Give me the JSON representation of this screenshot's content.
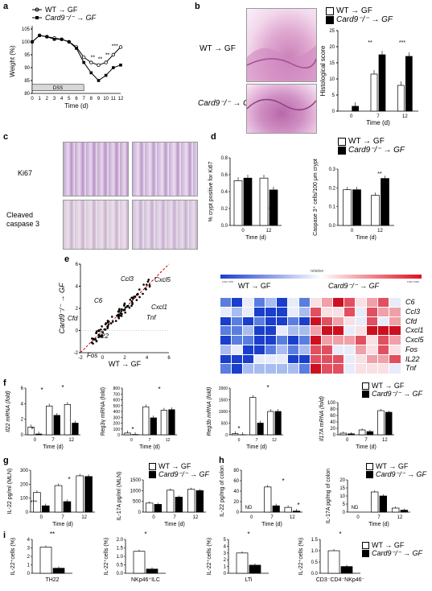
{
  "panels": {
    "a": "a",
    "b": "b",
    "c": "c",
    "d": "d",
    "e": "e",
    "f": "f",
    "g": "g",
    "h": "h",
    "i": "i"
  },
  "legend": {
    "wt": "WT → GF",
    "card9": "Card9⁻/⁻ → GF"
  },
  "colors": {
    "wt_fill": "#ffffff",
    "card9_fill": "#000000",
    "dashed": "#d00000",
    "he_pink": "#d890c0",
    "ki67": "#b0a0c8"
  },
  "panel_a": {
    "ylabel": "Weight (%)",
    "xlabel": "Time (d)",
    "dss": "DSS",
    "yticks": [
      "80",
      "85",
      "90",
      "95",
      "100",
      "105"
    ],
    "xticks": [
      "0",
      "1",
      "2",
      "3",
      "4",
      "5",
      "6",
      "7",
      "8",
      "9",
      "10",
      "11",
      "12"
    ],
    "stars": [
      "**",
      "**",
      "**",
      "***"
    ]
  },
  "panel_b": {
    "row1": "WT → GF",
    "row2": "Card9⁻/⁻ → GF",
    "ylabel": "Histological score",
    "xlabel": "Time (d)",
    "stars": [
      "**",
      "***"
    ]
  },
  "panel_c": {
    "row1": "Ki67",
    "row2": "Cleaved caspase 3"
  },
  "panel_d": {
    "chart1_ylabel": "% crypt positive for Ki67",
    "chart2_ylabel": "Caspase 3⁺ cells/100 μm crypt",
    "xlabel": "Time (d)",
    "star1": "***",
    "star2": "**"
  },
  "panel_e": {
    "ylabel": "Card9⁻/⁻ → GF",
    "xlabel": "WT → GF",
    "labels": [
      "Ccl3",
      "Cxcl5",
      "C6",
      "Cxcl1",
      "Tnf",
      "Cfd",
      "Il22",
      "Fos"
    ],
    "heat_header": "relative",
    "heat_low": "row min",
    "heat_high": "row max",
    "heat_wt": "WT → GF",
    "heat_card9": "Card9⁻/⁻ → GF",
    "genes": [
      "C6",
      "Ccl3",
      "Cfd",
      "Cxcl1",
      "Cxcl5",
      "Fos",
      "IL22",
      "Tnf"
    ]
  },
  "panel_f": {
    "ylabels": [
      "Il22 mRNA (fold)",
      "Reg3γ mRNA (fold)",
      "Reg3b mRNA (fold)",
      "Il17A mRNA (fold)"
    ],
    "xlabel": "Time (d)"
  },
  "panel_g": {
    "ylabels": [
      "IL-22 pg/ml (MLN)",
      "IL-17A pg/ml (MLN)"
    ],
    "xlabel": "Time (d)"
  },
  "panel_h": {
    "ylabels": [
      "IL-22 pg/mg of colon",
      "IL-17A pg/mg of colon"
    ],
    "xlabel": "Time (d)",
    "nd": "ND"
  },
  "panel_i": {
    "ylabel": "IL-22⁺cells (%)",
    "cats": [
      "TH22",
      "NKp46⁺ILC",
      "LTi",
      "CD3⁻CD4⁻NKp46⁻"
    ]
  },
  "chart_data": [
    {
      "id": "a",
      "type": "line",
      "title": "",
      "xlabel": "Time (d)",
      "ylabel": "Weight (%)",
      "ylim": [
        80,
        105
      ],
      "x": [
        0,
        1,
        2,
        3,
        4,
        5,
        6,
        7,
        8,
        9,
        10,
        11,
        12
      ],
      "series": [
        {
          "name": "WT → GF",
          "values": [
            100,
            102.5,
            102,
            101.5,
            101,
            100,
            98,
            94,
            92,
            91,
            92,
            95,
            98
          ]
        },
        {
          "name": "Card9⁻/⁻ → GF",
          "values": [
            100,
            102.5,
            102,
            101,
            101,
            100,
            97.5,
            92,
            88,
            85,
            87,
            90,
            91
          ]
        }
      ]
    },
    {
      "id": "b",
      "type": "bar",
      "xlabel": "Time (d)",
      "ylabel": "Histological score",
      "ylim": [
        0,
        25
      ],
      "categories": [
        "0",
        "7",
        "12"
      ],
      "series": [
        {
          "name": "WT → GF",
          "values": [
            0,
            11.5,
            8
          ]
        },
        {
          "name": "Card9⁻/⁻ → GF",
          "values": [
            1.5,
            17.5,
            17
          ]
        }
      ]
    },
    {
      "id": "d1",
      "type": "bar",
      "xlabel": "Time (d)",
      "ylabel": "% crypt positive for Ki67",
      "ylim": [
        0,
        0.8
      ],
      "yticks": [
        "0.0",
        "0.2",
        "0.4",
        "0.6",
        "0.8"
      ],
      "categories": [
        "0",
        "12"
      ],
      "series": [
        {
          "name": "WT → GF",
          "values": [
            0.53,
            0.56
          ]
        },
        {
          "name": "Card9⁻/⁻ → GF",
          "values": [
            0.56,
            0.42
          ]
        }
      ]
    },
    {
      "id": "d2",
      "type": "bar",
      "xlabel": "Time (d)",
      "ylabel": "Caspase 3⁺ cells/100 μm crypt",
      "ylim": [
        0,
        0.3
      ],
      "yticks": [
        "0.0",
        "0.1",
        "0.2",
        "0.3"
      ],
      "categories": [
        "0",
        "12"
      ],
      "series": [
        {
          "name": "WT → GF",
          "values": [
            0.19,
            0.16
          ]
        },
        {
          "name": "Card9⁻/⁻ → GF",
          "values": [
            0.19,
            0.25
          ]
        }
      ]
    },
    {
      "id": "e",
      "type": "scatter",
      "xlabel": "WT → GF",
      "ylabel": "Card9⁻/⁻ → GF",
      "xlim": [
        -2,
        6
      ],
      "ylim": [
        -2,
        6
      ],
      "xticks": [
        "-2",
        "0",
        "2",
        "4",
        "6"
      ],
      "yticks": [
        "-2",
        "0",
        "2",
        "4",
        "6"
      ]
    },
    {
      "id": "f1",
      "type": "bar",
      "xlabel": "Time (d)",
      "ylabel": "Il22 mRNA (fold)",
      "ylim": [
        0,
        6
      ],
      "yticks": [
        "0",
        "2",
        "4",
        "6"
      ],
      "categories": [
        "0",
        "7",
        "12"
      ],
      "series": [
        {
          "name": "WT → GF",
          "values": [
            1,
            3.7,
            3.9
          ]
        },
        {
          "name": "Card9⁻/⁻ → GF",
          "values": [
            0.1,
            2.5,
            1.5
          ]
        }
      ]
    },
    {
      "id": "f2",
      "type": "bar",
      "xlabel": "Time (d)",
      "ylabel": "Reg3γ mRNA (fold)",
      "ylim": [
        0,
        800
      ],
      "yticks": [
        "0",
        "100",
        "200",
        "300",
        "400",
        "500",
        "600",
        "700",
        "800"
      ],
      "categories": [
        "0",
        "7",
        "12"
      ],
      "series": [
        {
          "name": "WT → GF",
          "values": [
            30,
            480,
            420
          ]
        },
        {
          "name": "Card9⁻/⁻ → GF",
          "values": [
            5,
            290,
            430
          ]
        }
      ]
    },
    {
      "id": "f3",
      "type": "bar",
      "xlabel": "Time (d)",
      "ylabel": "Reg3b mRNA (fold)",
      "ylim": [
        0,
        2000
      ],
      "yticks": [
        "0",
        "500",
        "1000",
        "1500",
        "2000"
      ],
      "categories": [
        "0",
        "7",
        "12"
      ],
      "series": [
        {
          "name": "WT → GF",
          "values": [
            50,
            1600,
            1000
          ]
        },
        {
          "name": "Card9⁻/⁻ → GF",
          "values": [
            5,
            500,
            1000
          ]
        }
      ]
    },
    {
      "id": "f4",
      "type": "bar",
      "xlabel": "Time (d)",
      "ylabel": "Il17A mRNA (fold)",
      "ylim": [
        0,
        100
      ],
      "yticks": [
        "0",
        "20",
        "40",
        "60",
        "80",
        "100"
      ],
      "categories": [
        "0",
        "7",
        "12"
      ],
      "series": [
        {
          "name": "WT → GF",
          "values": [
            5,
            15,
            75
          ]
        },
        {
          "name": "Card9⁻/⁻ → GF",
          "values": [
            3,
            10,
            70
          ]
        }
      ]
    },
    {
      "id": "g1",
      "type": "bar",
      "xlabel": "Time (d)",
      "ylabel": "IL-22 pg/ml (MLN)",
      "ylim": [
        0,
        300
      ],
      "yticks": [
        "0",
        "100",
        "200",
        "300"
      ],
      "categories": [
        "0",
        "7",
        "12"
      ],
      "series": [
        {
          "name": "WT → GF",
          "values": [
            140,
            190,
            260
          ]
        },
        {
          "name": "Card9⁻/⁻ → GF",
          "values": [
            45,
            75,
            255
          ]
        }
      ]
    },
    {
      "id": "g2",
      "type": "bar",
      "xlabel": "Time (d)",
      "ylabel": "IL-17A pg/ml (MLN)",
      "ylim": [
        0,
        1500
      ],
      "yticks": [
        "0",
        "500",
        "1000",
        "1500"
      ],
      "categories": [
        "0",
        "7",
        "12"
      ],
      "series": [
        {
          "name": "WT → GF",
          "values": [
            420,
            1020,
            1060
          ]
        },
        {
          "name": "Card9⁻/⁻ → GF",
          "values": [
            360,
            700,
            1000
          ]
        }
      ]
    },
    {
      "id": "h1",
      "type": "bar",
      "xlabel": "Time (d)",
      "ylabel": "IL-22 pg/mg of colon",
      "ylim": [
        0,
        80
      ],
      "yticks": [
        "0",
        "20",
        "40",
        "60",
        "80"
      ],
      "categories": [
        "0",
        "7",
        "12"
      ],
      "series": [
        {
          "name": "WT → GF",
          "values": [
            0,
            48,
            9
          ]
        },
        {
          "name": "Card9⁻/⁻ → GF",
          "values": [
            0,
            12,
            2
          ]
        }
      ]
    },
    {
      "id": "h2",
      "type": "bar",
      "xlabel": "Time (d)",
      "ylabel": "IL-17A pg/mg of colon",
      "ylim": [
        0,
        20
      ],
      "yticks": [
        "0",
        "5",
        "10",
        "15",
        "20"
      ],
      "categories": [
        "0",
        "7",
        "12"
      ],
      "series": [
        {
          "name": "WT → GF",
          "values": [
            0,
            12.5,
            2.5
          ]
        },
        {
          "name": "Card9⁻/⁻ → GF",
          "values": [
            0,
            10,
            1.2
          ]
        }
      ]
    },
    {
      "id": "i1",
      "type": "bar",
      "xlabel": "TH22",
      "ylabel": "IL-22⁺cells (%)",
      "ylim": [
        0,
        4
      ],
      "yticks": [
        "0",
        "1",
        "2",
        "3",
        "4"
      ],
      "categories": [
        "TH22"
      ],
      "series": [
        {
          "name": "WT → GF",
          "values": [
            3.1
          ]
        },
        {
          "name": "Card9⁻/⁻ → GF",
          "values": [
            0.6
          ]
        }
      ]
    },
    {
      "id": "i2",
      "type": "bar",
      "xlabel": "NKp46⁺ILC",
      "ylabel": "IL-22⁺cells (%)",
      "ylim": [
        0,
        2
      ],
      "yticks": [
        "0.0",
        "0.5",
        "1.0",
        "1.5",
        "2.0"
      ],
      "categories": [
        "NKp46⁺ILC"
      ],
      "series": [
        {
          "name": "WT → GF",
          "values": [
            1.3
          ]
        },
        {
          "name": "Card9⁻/⁻ → GF",
          "values": [
            0.25
          ]
        }
      ]
    },
    {
      "id": "i3",
      "type": "bar",
      "xlabel": "LTi",
      "ylabel": "IL-22⁺cells (%)",
      "ylim": [
        0,
        5
      ],
      "yticks": [
        "0",
        "1",
        "2",
        "3",
        "4",
        "5"
      ],
      "categories": [
        "LTi"
      ],
      "series": [
        {
          "name": "WT → GF",
          "values": [
            3.0
          ]
        },
        {
          "name": "Card9⁻/⁻ → GF",
          "values": [
            1.2
          ]
        }
      ]
    },
    {
      "id": "i4",
      "type": "bar",
      "xlabel": "CD3⁻CD4⁻NKp46⁻",
      "ylabel": "IL-22⁺cells (%)",
      "ylim": [
        0,
        1.5
      ],
      "yticks": [
        "0.0",
        "0.5",
        "1.0",
        "1.5"
      ],
      "categories": [
        "CD3⁻CD4⁻NKp46⁻"
      ],
      "series": [
        {
          "name": "WT → GF",
          "values": [
            1.0
          ]
        },
        {
          "name": "Card9⁻/⁻ → GF",
          "values": [
            0.3
          ]
        }
      ]
    }
  ]
}
